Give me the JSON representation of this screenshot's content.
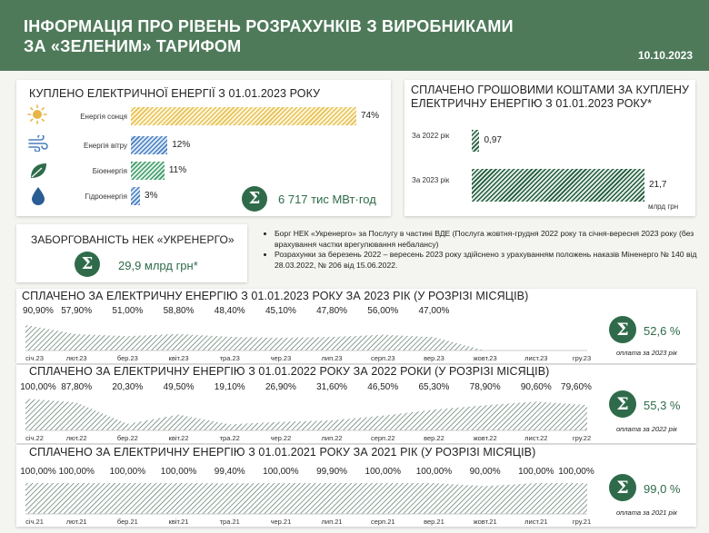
{
  "header": {
    "title_line1": "ІНФОРМАЦІЯ ПРО РІВЕНЬ РОЗРАХУНКІВ З ВИРОБНИКАМИ",
    "title_line2": "ЗА «ЗЕЛЕНИМ» ТАРИФОМ",
    "date": "10.10.2023"
  },
  "colors": {
    "header": "#4f7a5a",
    "accent": "#2f6b4a",
    "solar": "#e6c15a",
    "wind": "#4a7fbf",
    "bio": "#3f9a6a",
    "hydro": "#4a7fbf"
  },
  "purchased": {
    "title": "КУПЛЕНО ЕЛЕКТРИЧНОЇ ЕНЕРГІЇ З 01.01.2023 РОКУ",
    "total": "6 717 тис МВт·год",
    "items": [
      {
        "icon": "sun-icon",
        "label": "Енергія сонця",
        "value": 74,
        "value_label": "74%"
      },
      {
        "icon": "wind-icon",
        "label": "Енергія вітру",
        "value": 12,
        "value_label": "12%"
      },
      {
        "icon": "leaf-icon",
        "label": "Біоенергія",
        "value": 11,
        "value_label": "11%"
      },
      {
        "icon": "water-drop-icon",
        "label": "Гідроенергія",
        "value": 3,
        "value_label": "3%"
      }
    ]
  },
  "paid_cash": {
    "title_line1": "СПЛАЧЕНО ГРОШОВИМИ КОШТАМИ ЗА КУПЛЕНУ",
    "title_line2": "ЕЛЕКТРИЧНУ ЕНЕРГІЮ З 01.01.2023 РОКУ*",
    "unit": "млрд грн",
    "items": [
      {
        "label": "За 2022 рік",
        "value": 0.97,
        "value_label": "0,97"
      },
      {
        "label": "За 2023 рік",
        "value": 21.7,
        "value_label": "21,7"
      }
    ]
  },
  "debt": {
    "title": "ЗАБОРГОВАНІСТЬ НЕК «УКРЕНЕРГО»",
    "value": "29,9 млрд грн*"
  },
  "notes": [
    "Борг НЕК «Укренерго» за Послугу в частині ВДЕ (Послуга жовтня-грудня 2022 року та січня-вересня 2023 року (без врахування частки врегулювання небалансу)",
    "Розрахунки за березень 2022 – вересень 2023 року здійснено з урахуванням положень наказів Міненерго № 140 від 28.03.2022, № 206 від 15.06.2022."
  ],
  "chart_data": [
    {
      "type": "area",
      "title": "СПЛАЧЕНО ЗА ЕЛЕКТРИЧНУ ЕНЕРГІЮ З 01.01.2023 РОКУ ЗА 2023 РІК  (У РОЗРІЗІ МІСЯЦІВ)",
      "categories": [
        "січ.23",
        "лют.23",
        "бер.23",
        "квіт.23",
        "тра.23",
        "чер.23",
        "лип.23",
        "серп.23",
        "вер.23",
        "жовт.23",
        "лист.23",
        "гру.23"
      ],
      "values": [
        90.9,
        57.9,
        51.0,
        58.8,
        48.4,
        45.1,
        47.8,
        56.0,
        47.0,
        null,
        null,
        null
      ],
      "value_labels": [
        "90,90%",
        "57,90%",
        "51,00%",
        "58,80%",
        "48,40%",
        "45,10%",
        "47,80%",
        "56,00%",
        "47,00%",
        "",
        "",
        ""
      ],
      "ylim": [
        0,
        100
      ],
      "summary": "52,6 %",
      "summary_note": "оплата за 2023 рік"
    },
    {
      "type": "area",
      "title": "СПЛАЧЕНО ЗА ЕЛЕКТРИЧНУ ЕНЕРГІЮ З 01.01.2022 РОКУ ЗА 2022 РОКИ (У РОЗРІЗІ МІСЯЦІВ)",
      "categories": [
        "січ.22",
        "лют.22",
        "бер.22",
        "квіт.22",
        "тра.22",
        "чер.22",
        "лип.22",
        "серп.22",
        "вер.22",
        "жовт.22",
        "лист.22",
        "гру.22"
      ],
      "values": [
        100.0,
        87.8,
        20.3,
        49.5,
        19.1,
        26.9,
        31.6,
        46.5,
        65.3,
        78.9,
        90.6,
        79.6
      ],
      "value_labels": [
        "100,00%",
        "87,80%",
        "20,30%",
        "49,50%",
        "19,10%",
        "26,90%",
        "31,60%",
        "46,50%",
        "65,30%",
        "78,90%",
        "90,60%",
        "79,60%"
      ],
      "ylim": [
        0,
        100
      ],
      "summary": "55,3 %",
      "summary_note": "оплата за 2022 рік"
    },
    {
      "type": "area",
      "title": "СПЛАЧЕНО ЗА ЕЛЕКТРИЧНУ ЕНЕРГІЮ З 01.01.2021 РОКУ ЗА 2021 РІК (У РОЗРІЗІ МІСЯЦІВ)",
      "categories": [
        "січ.21",
        "лют.21",
        "бер.21",
        "квіт.21",
        "тра.21",
        "чер.21",
        "лип.21",
        "серп.21",
        "вер.21",
        "жовт.21",
        "лист.21",
        "гру.21"
      ],
      "values": [
        100.0,
        100.0,
        100.0,
        100.0,
        99.4,
        100.0,
        99.9,
        100.0,
        100.0,
        90.0,
        100.0,
        100.0
      ],
      "value_labels": [
        "100,00%",
        "100,00%",
        "100,00%",
        "100,00%",
        "99,40%",
        "100,00%",
        "99,90%",
        "100,00%",
        "100,00%",
        "90,00%",
        "100,00%",
        "100,00%"
      ],
      "ylim": [
        0,
        100
      ],
      "summary": "99,0 %",
      "summary_note": "оплата за 2021 рік"
    }
  ]
}
